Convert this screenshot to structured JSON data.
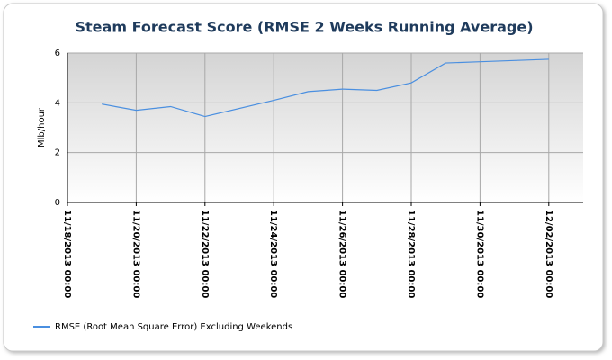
{
  "chart_data": {
    "type": "line",
    "title": "Steam Forecast Score (RMSE 2 Weeks Running Average)",
    "y_label": "Mlb/hour",
    "x": [
      "11/19/2013 00:00",
      "11/20/2013 00:00",
      "11/21/2013 00:00",
      "11/22/2013 00:00",
      "11/24/2013 00:00",
      "11/25/2013 00:00",
      "11/26/2013 00:00",
      "11/27/2013 00:00",
      "11/28/2013 00:00",
      "11/29/2013 00:00",
      "11/30/2013 00:00",
      "12/02/2013 00:00"
    ],
    "series": [
      {
        "name": "RMSE (Root Mean Square Error) Excluding Weekends",
        "color": "#4a8fe0",
        "values": [
          3.95,
          3.7,
          3.85,
          3.45,
          4.1,
          4.45,
          4.55,
          4.5,
          4.8,
          5.6,
          5.65,
          5.75
        ]
      }
    ],
    "xlim": [
      "11/18/2013 00:00",
      "12/03/2013 00:00"
    ],
    "xticks": [
      "11/18/2013 00:00",
      "11/20/2013 00:00",
      "11/22/2013 00:00",
      "11/24/2013 00:00",
      "11/26/2013 00:00",
      "11/28/2013 00:00",
      "11/30/2013 00:00",
      "12/02/2013 00:00"
    ],
    "ylim": [
      0,
      6
    ],
    "yticks": [
      0,
      2,
      4,
      6
    ],
    "grid": true,
    "legend": "bottom"
  }
}
